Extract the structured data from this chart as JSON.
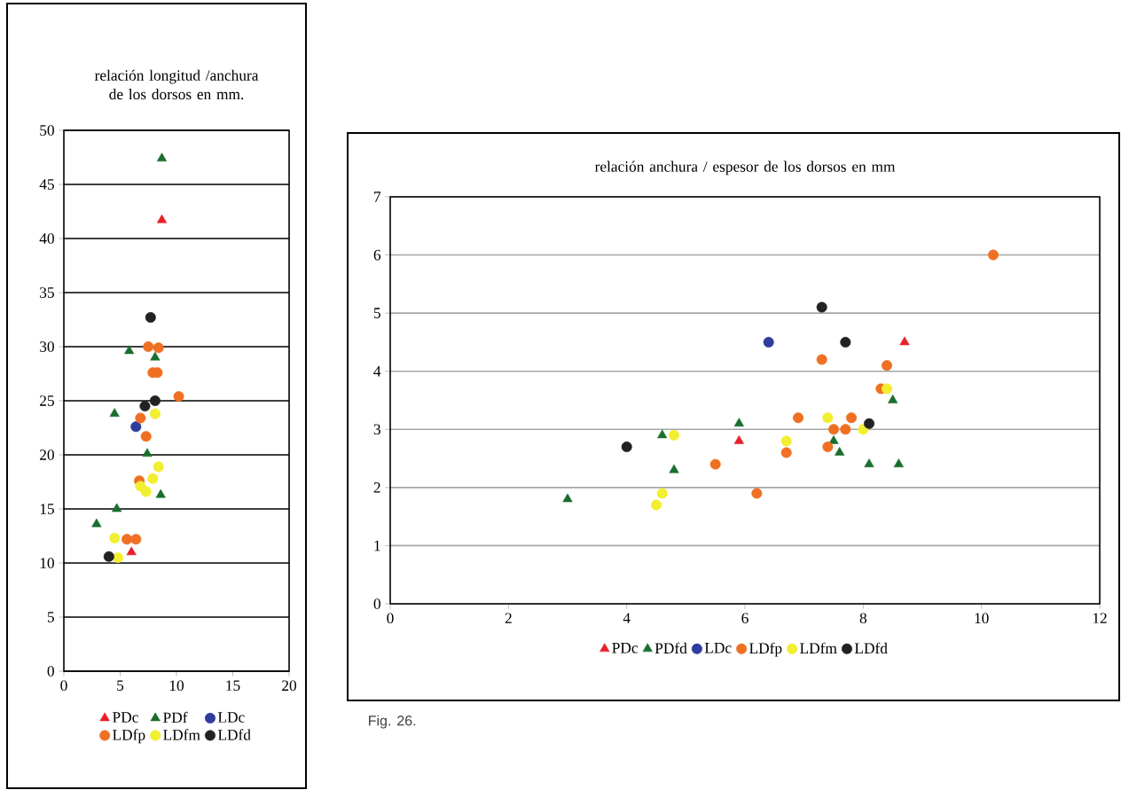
{
  "chart_data": [
    {
      "type": "scatter",
      "title": "relación longitud /anchura de los dorsos en mm.",
      "xlim": [
        0,
        20
      ],
      "xticks": [
        0,
        5,
        10,
        15,
        20
      ],
      "ylim": [
        0,
        50
      ],
      "yticks": [
        0,
        5,
        10,
        15,
        20,
        25,
        30,
        35,
        40,
        45,
        50
      ],
      "grid": "y",
      "legend": "bottom",
      "series": [
        {
          "name": "PDc",
          "color": "#e8202a",
          "marker": "triangle",
          "x": [
            8.7,
            6.0
          ],
          "values": [
            41.7,
            11.0
          ]
        },
        {
          "name": "PDf",
          "color": "#1a6e2e",
          "marker": "triangle",
          "x": [
            8.7,
            5.8,
            8.1,
            4.5,
            7.4,
            8.6,
            4.7,
            2.9
          ],
          "values": [
            47.4,
            29.6,
            29.0,
            23.8,
            20.1,
            16.3,
            15.0,
            13.6
          ]
        },
        {
          "name": "LDc",
          "color": "#2e3d9e",
          "marker": "circle",
          "x": [
            6.4
          ],
          "values": [
            22.6
          ]
        },
        {
          "name": "LDfp",
          "color": "#f07023",
          "marker": "circle",
          "x": [
            7.5,
            8.4,
            7.9,
            8.3,
            10.2,
            6.8,
            7.3,
            6.7,
            5.6,
            6.4
          ],
          "values": [
            30.0,
            29.9,
            27.6,
            27.6,
            25.4,
            23.4,
            21.7,
            17.6,
            12.2,
            12.2
          ]
        },
        {
          "name": "LDfm",
          "color": "#f2ee30",
          "marker": "circle",
          "x": [
            8.1,
            8.4,
            7.9,
            6.8,
            7.3,
            4.5,
            4.8
          ],
          "values": [
            23.8,
            18.9,
            17.8,
            17.1,
            16.6,
            12.3,
            10.5
          ]
        },
        {
          "name": "LDfd",
          "color": "#222222",
          "marker": "circle",
          "x": [
            7.7,
            8.1,
            7.2,
            4.0
          ],
          "values": [
            32.7,
            25.0,
            24.5,
            10.6
          ]
        }
      ]
    },
    {
      "type": "scatter",
      "title": "relación anchura / espesor de los dorsos en mm",
      "xlim": [
        0,
        12
      ],
      "xticks": [
        0,
        2,
        4,
        6,
        8,
        10,
        12
      ],
      "ylim": [
        0,
        7
      ],
      "yticks": [
        0,
        1,
        2,
        3,
        4,
        5,
        6,
        7
      ],
      "grid": "y",
      "legend": "bottom",
      "annotations": [
        "Fig. 26."
      ],
      "series": [
        {
          "name": "PDc",
          "color": "#e8202a",
          "marker": "triangle",
          "x": [
            5.9,
            8.7
          ],
          "values": [
            2.8,
            4.5
          ]
        },
        {
          "name": "PDfd",
          "color": "#1a6e2e",
          "marker": "triangle",
          "x": [
            3.0,
            4.6,
            4.8,
            5.9,
            8.5,
            7.5,
            7.6,
            8.1,
            8.6
          ],
          "values": [
            1.8,
            2.9,
            2.3,
            3.1,
            3.5,
            2.8,
            2.6,
            2.4,
            2.4
          ]
        },
        {
          "name": "LDc",
          "color": "#2e3d9e",
          "marker": "circle",
          "x": [
            6.4
          ],
          "values": [
            4.5
          ]
        },
        {
          "name": "LDfp",
          "color": "#f07023",
          "marker": "circle",
          "x": [
            5.5,
            10.2,
            7.3,
            8.4,
            8.3,
            6.9,
            7.8,
            7.5,
            7.7,
            6.7,
            7.4,
            6.2
          ],
          "values": [
            2.4,
            6.0,
            4.2,
            4.1,
            3.7,
            3.2,
            3.2,
            3.0,
            3.0,
            2.6,
            2.7,
            1.9
          ]
        },
        {
          "name": "LDfm",
          "color": "#f2ee30",
          "marker": "circle",
          "x": [
            4.8,
            4.6,
            4.5,
            8.4,
            7.4,
            8.0,
            6.7
          ],
          "values": [
            2.9,
            1.9,
            1.7,
            3.7,
            3.2,
            3.0,
            2.8
          ]
        },
        {
          "name": "LDfd",
          "color": "#222222",
          "marker": "circle",
          "x": [
            4.0,
            7.3,
            7.7,
            8.1
          ],
          "values": [
            2.7,
            5.1,
            4.5,
            3.1
          ]
        }
      ]
    }
  ]
}
